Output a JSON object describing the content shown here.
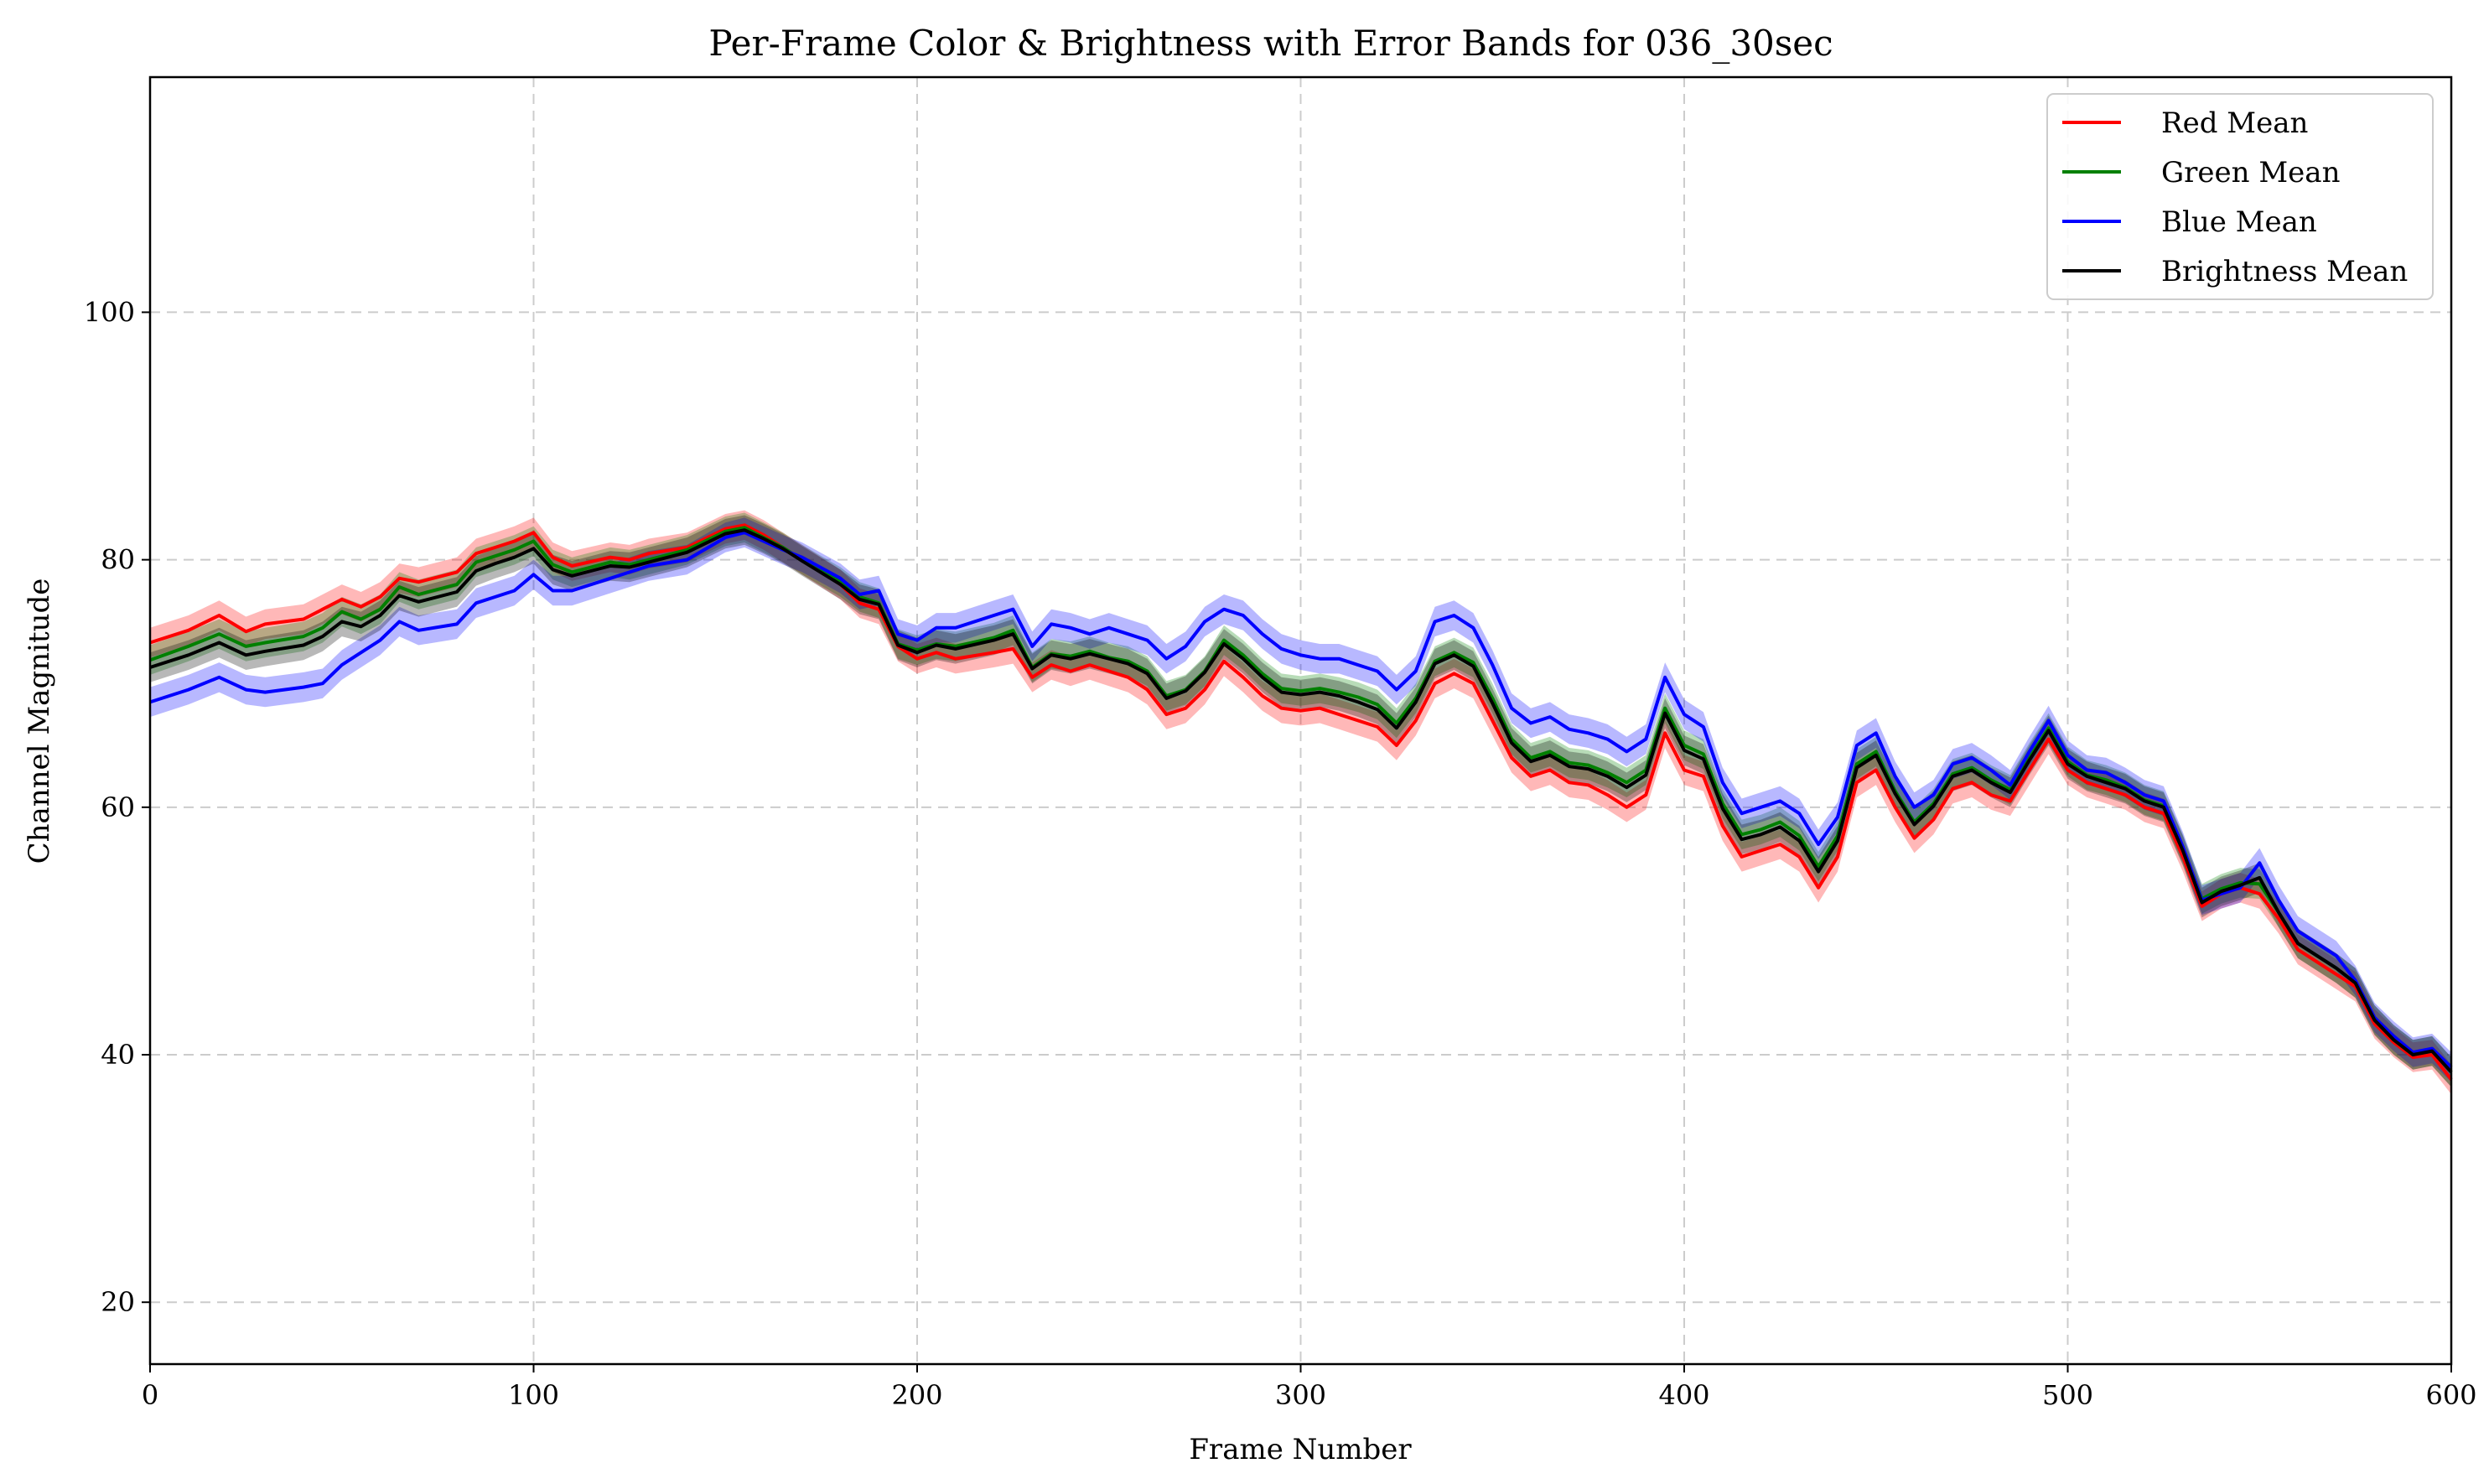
{
  "chart_data": {
    "type": "line",
    "title": "Per-Frame Color & Brightness with Error Bands for 036_30sec",
    "xlabel": "Frame Number",
    "ylabel": "Channel Magnitude",
    "xlim": [
      0,
      600
    ],
    "ylim": [
      15,
      119
    ],
    "xticks": [
      0,
      100,
      200,
      300,
      400,
      500,
      600
    ],
    "yticks": [
      20,
      40,
      60,
      80,
      100
    ],
    "grid": true,
    "legend_position": "top-right",
    "x": [
      0,
      10,
      18,
      25,
      30,
      40,
      45,
      50,
      55,
      60,
      65,
      70,
      80,
      85,
      90,
      95,
      100,
      105,
      110,
      120,
      125,
      130,
      140,
      150,
      155,
      160,
      165,
      170,
      180,
      185,
      190,
      195,
      200,
      205,
      210,
      220,
      225,
      230,
      235,
      240,
      245,
      250,
      255,
      260,
      265,
      270,
      275,
      280,
      285,
      290,
      295,
      300,
      305,
      310,
      315,
      320,
      325,
      330,
      335,
      340,
      345,
      350,
      355,
      360,
      365,
      370,
      375,
      380,
      385,
      390,
      395,
      400,
      405,
      410,
      415,
      420,
      425,
      430,
      435,
      440,
      445,
      450,
      455,
      460,
      465,
      470,
      475,
      480,
      485,
      490,
      495,
      500,
      505,
      510,
      515,
      520,
      525,
      530,
      535,
      540,
      545,
      550,
      555,
      560,
      565,
      570,
      575,
      580,
      585,
      590,
      595,
      600
    ],
    "series": [
      {
        "name": "Red Mean",
        "color": "#ff0000",
        "values": [
          73.3,
          74.3,
          75.5,
          74.2,
          74.8,
          75.2,
          76.0,
          76.8,
          76.2,
          77.0,
          78.5,
          78.2,
          79.0,
          80.5,
          81.0,
          81.5,
          82.2,
          80.2,
          79.5,
          80.2,
          80.0,
          80.5,
          81.0,
          82.5,
          82.8,
          82.0,
          81.0,
          80.0,
          78.0,
          76.5,
          76.0,
          73.0,
          72.0,
          72.5,
          72.0,
          72.5,
          72.8,
          70.5,
          71.5,
          71.0,
          71.5,
          71.0,
          70.5,
          69.5,
          67.5,
          68.0,
          69.5,
          71.8,
          70.5,
          69.0,
          68.0,
          67.8,
          68.0,
          67.5,
          67.0,
          66.5,
          65.0,
          67.0,
          70.0,
          70.8,
          70.0,
          67.0,
          64.0,
          62.5,
          63.0,
          62.0,
          61.8,
          61.0,
          60.0,
          61.0,
          66.0,
          63.0,
          62.5,
          58.5,
          56.0,
          56.5,
          57.0,
          56.0,
          53.5,
          56.0,
          62.0,
          63.0,
          60.0,
          57.5,
          59.0,
          61.5,
          62.0,
          61.0,
          60.5,
          63.0,
          65.5,
          63.0,
          62.0,
          61.5,
          61.0,
          60.0,
          59.5,
          56.0,
          52.0,
          53.0,
          53.5,
          53.0,
          51.0,
          48.5,
          47.5,
          46.5,
          45.5,
          42.5,
          41.0,
          39.8,
          40.0,
          38.0
        ]
      },
      {
        "name": "Green Mean",
        "color": "#008000",
        "values": [
          71.9,
          73.0,
          74.0,
          73.0,
          73.3,
          73.8,
          74.5,
          75.8,
          75.2,
          76.0,
          77.8,
          77.2,
          78.0,
          79.8,
          80.3,
          80.8,
          81.5,
          79.6,
          79.0,
          79.8,
          79.6,
          80.0,
          80.8,
          82.3,
          82.6,
          81.8,
          81.0,
          80.0,
          78.2,
          77.0,
          76.5,
          73.2,
          72.7,
          73.2,
          73.0,
          73.7,
          74.3,
          71.3,
          72.4,
          72.2,
          72.6,
          72.1,
          71.8,
          71.0,
          69.0,
          69.5,
          71.0,
          73.5,
          72.3,
          70.8,
          69.6,
          69.4,
          69.6,
          69.3,
          68.9,
          68.3,
          66.8,
          68.8,
          71.8,
          72.5,
          71.7,
          68.8,
          65.5,
          64.0,
          64.5,
          63.6,
          63.4,
          62.8,
          62.0,
          63.0,
          68.0,
          65.0,
          64.3,
          60.3,
          57.8,
          58.2,
          58.8,
          57.7,
          55.2,
          57.7,
          63.5,
          64.5,
          61.3,
          58.8,
          60.3,
          62.7,
          63.2,
          62.2,
          61.4,
          64.0,
          66.4,
          63.7,
          62.6,
          62.2,
          61.6,
          60.6,
          60.1,
          56.6,
          52.6,
          53.4,
          53.9,
          53.8,
          51.5,
          49.0,
          48.0,
          47.0,
          45.8,
          42.8,
          41.2,
          40.0,
          40.3,
          38.6
        ]
      },
      {
        "name": "Blue Mean",
        "color": "#0000ff",
        "values": [
          68.5,
          69.5,
          70.5,
          69.5,
          69.3,
          69.7,
          70.0,
          71.5,
          72.5,
          73.5,
          75.0,
          74.3,
          74.8,
          76.5,
          77.0,
          77.5,
          78.8,
          77.5,
          77.5,
          78.5,
          79.0,
          79.5,
          80.0,
          81.8,
          82.2,
          81.5,
          80.8,
          80.2,
          78.5,
          77.2,
          77.5,
          74.0,
          73.5,
          74.5,
          74.5,
          75.5,
          76.0,
          73.0,
          74.8,
          74.5,
          74.0,
          74.5,
          74.0,
          73.5,
          72.0,
          73.0,
          75.0,
          76.0,
          75.5,
          74.0,
          72.8,
          72.3,
          72.0,
          72.0,
          71.5,
          71.0,
          69.5,
          71.0,
          75.0,
          75.5,
          74.5,
          71.5,
          68.0,
          66.8,
          67.3,
          66.3,
          66.0,
          65.5,
          64.5,
          65.5,
          70.5,
          67.5,
          66.5,
          62.0,
          59.5,
          60.0,
          60.5,
          59.5,
          57.0,
          59.2,
          65.0,
          66.0,
          62.5,
          60.0,
          61.0,
          63.5,
          64.0,
          63.0,
          61.8,
          64.5,
          67.0,
          64.2,
          63.0,
          62.8,
          62.0,
          61.0,
          60.5,
          56.8,
          52.5,
          53.0,
          53.5,
          55.5,
          52.5,
          50.0,
          49.0,
          48.0,
          46.0,
          43.0,
          41.5,
          40.2,
          40.5,
          39.0
        ]
      },
      {
        "name": "Brightness Mean",
        "color": "#000000",
        "values": [
          71.3,
          72.3,
          73.3,
          72.3,
          72.6,
          73.1,
          73.8,
          75.0,
          74.6,
          75.5,
          77.1,
          76.6,
          77.4,
          79.1,
          79.7,
          80.2,
          80.9,
          79.2,
          78.7,
          79.5,
          79.4,
          79.8,
          80.6,
          82.1,
          82.4,
          81.7,
          80.9,
          79.9,
          78.0,
          76.8,
          76.4,
          73.1,
          72.5,
          73.1,
          72.8,
          73.5,
          74.0,
          71.2,
          72.3,
          72.0,
          72.4,
          72.0,
          71.6,
          70.8,
          68.8,
          69.4,
          70.9,
          73.2,
          72.0,
          70.5,
          69.3,
          69.1,
          69.3,
          69.0,
          68.5,
          67.9,
          66.4,
          68.5,
          71.6,
          72.3,
          71.4,
          68.4,
          65.2,
          63.7,
          64.2,
          63.3,
          63.1,
          62.5,
          61.6,
          62.6,
          67.6,
          64.6,
          63.9,
          59.9,
          57.4,
          57.8,
          58.4,
          57.3,
          54.8,
          57.3,
          63.2,
          64.2,
          61.1,
          58.6,
          60.1,
          62.5,
          63.0,
          62.0,
          61.2,
          63.8,
          66.2,
          63.5,
          62.5,
          62.0,
          61.5,
          60.5,
          60.0,
          56.5,
          52.3,
          53.2,
          53.7,
          54.3,
          51.5,
          49.0,
          48.0,
          47.0,
          45.8,
          42.8,
          41.2,
          40.0,
          40.3,
          38.6
        ]
      }
    ],
    "error_band": 1.2
  }
}
